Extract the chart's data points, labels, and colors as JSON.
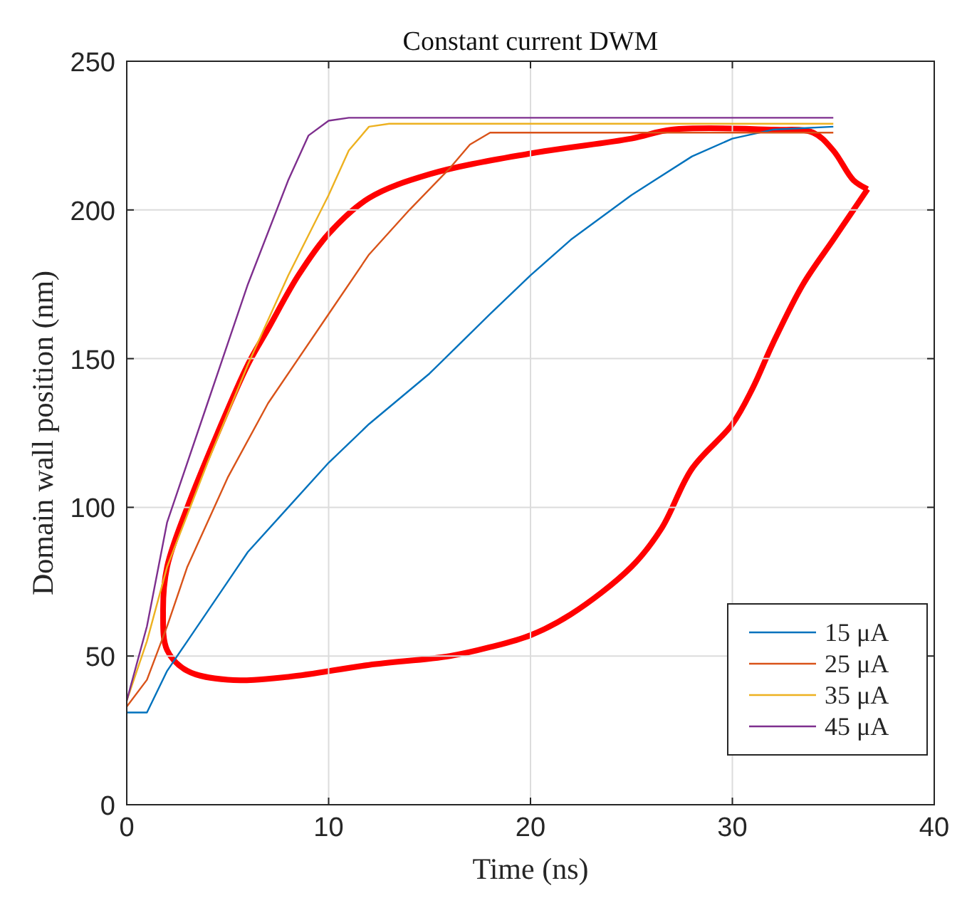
{
  "chart_data": {
    "type": "line",
    "title": "Constant current DWM",
    "xlabel": "Time (ns)",
    "ylabel": "Domain wall position (nm)",
    "xlim": [
      0,
      40
    ],
    "ylim": [
      0,
      250
    ],
    "xticks": [
      0,
      10,
      20,
      30,
      40
    ],
    "yticks": [
      0,
      50,
      100,
      150,
      200,
      250
    ],
    "grid": true,
    "legend": "bottom right",
    "series": [
      {
        "name": "15 μA",
        "color": "#0072bd",
        "x": [
          0,
          1,
          1.5,
          2,
          3,
          4,
          5,
          6,
          8,
          10,
          12,
          15,
          18,
          20,
          22,
          25,
          28,
          30,
          32,
          35
        ],
        "values": [
          31,
          31,
          38,
          45,
          55,
          65,
          75,
          85,
          100,
          115,
          128,
          145,
          165,
          178,
          190,
          205,
          218,
          224,
          227,
          228
        ]
      },
      {
        "name": "25 μA",
        "color": "#d95319",
        "x": [
          0,
          1,
          2,
          3,
          5,
          7,
          10,
          12,
          14,
          16,
          17,
          18,
          35
        ],
        "values": [
          33,
          42,
          60,
          80,
          110,
          135,
          165,
          185,
          200,
          214,
          222,
          226,
          226
        ]
      },
      {
        "name": "35 μA",
        "color": "#edb120",
        "x": [
          0,
          1,
          2,
          4,
          6,
          8,
          10,
          11,
          12,
          13,
          35
        ],
        "values": [
          35,
          55,
          80,
          115,
          148,
          178,
          205,
          220,
          228,
          229,
          229
        ]
      },
      {
        "name": "45 μA",
        "color": "#7e2f8e",
        "x": [
          0,
          1,
          2,
          4,
          6,
          8,
          9,
          10,
          11,
          35
        ],
        "values": [
          35,
          60,
          95,
          135,
          175,
          210,
          225,
          230,
          231,
          231
        ]
      }
    ]
  }
}
